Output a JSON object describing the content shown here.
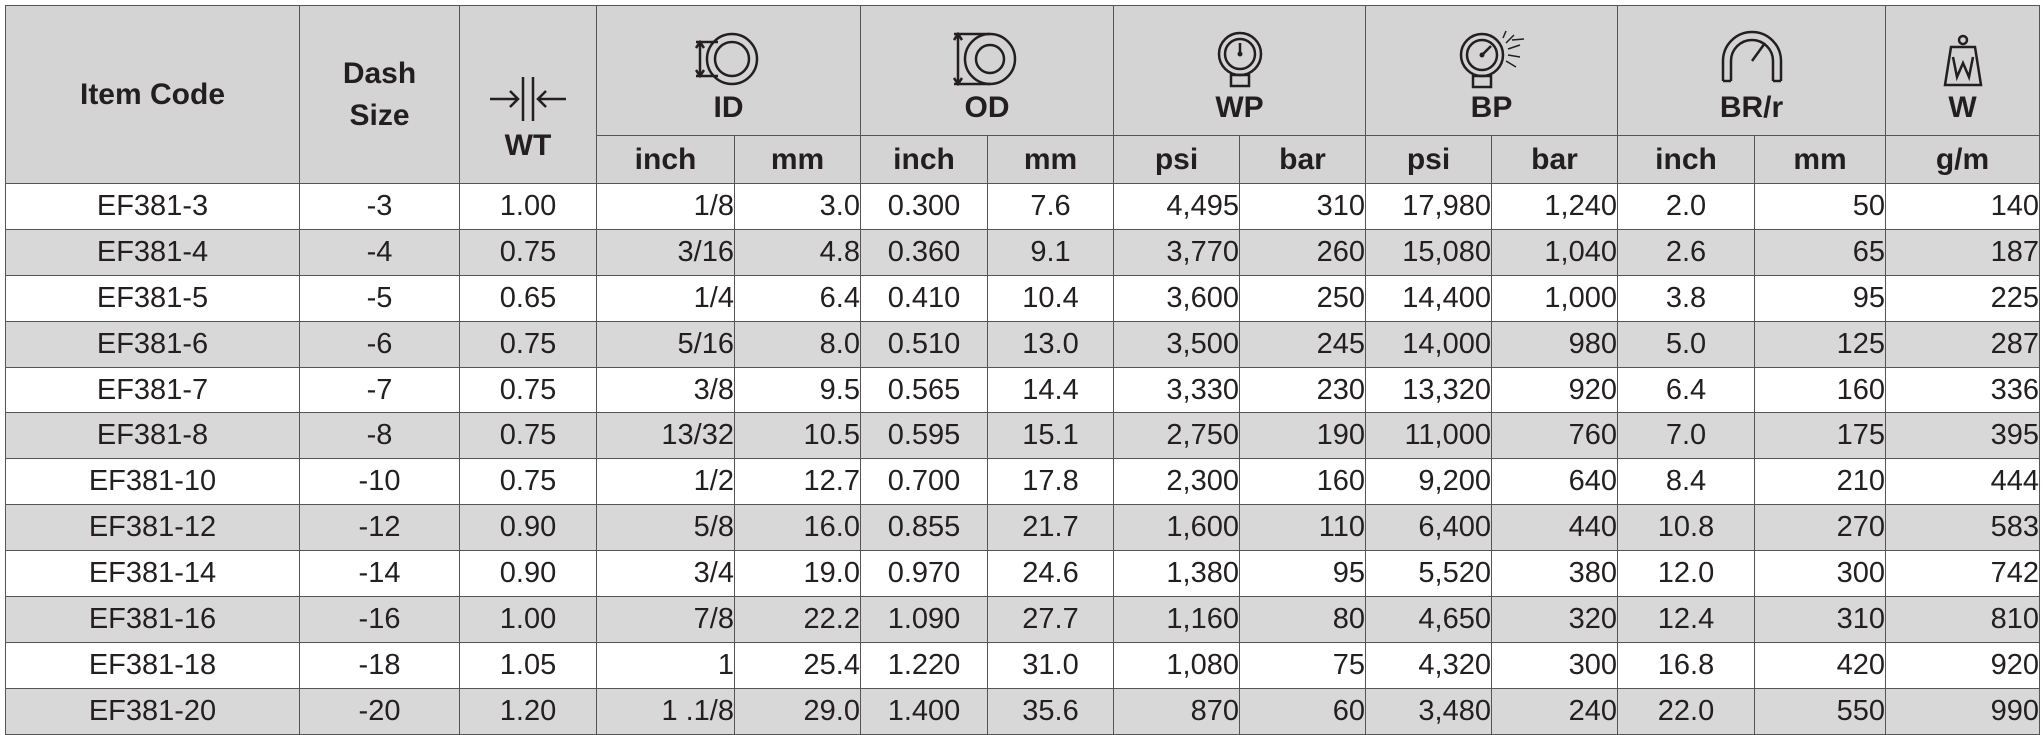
{
  "headers": {
    "item_code": "Item Code",
    "dash_size": "Dash Size",
    "wt": "WT",
    "id": "ID",
    "od": "OD",
    "wp": "WP",
    "bp": "BP",
    "brr": "BR/r",
    "w": "W"
  },
  "icons": {
    "wt": "wall-thickness-icon",
    "id": "inner-diameter-icon",
    "od": "outer-diameter-icon",
    "wp": "pressure-gauge-icon",
    "bp": "burst-gauge-icon",
    "brr": "bend-radius-icon",
    "w": "weight-icon"
  },
  "units": [
    "inch",
    "mm",
    "inch",
    "mm",
    "psi",
    "bar",
    "psi",
    "bar",
    "inch",
    "mm",
    "g/m"
  ],
  "rows": [
    [
      "EF381-3",
      "-3",
      "1.00",
      "1/8",
      "3.0",
      "0.300",
      "7.6",
      "4,495",
      "310",
      "17,980",
      "1,240",
      "2.0",
      "50",
      "140"
    ],
    [
      "EF381-4",
      "-4",
      "0.75",
      "3/16",
      "4.8",
      "0.360",
      "9.1",
      "3,770",
      "260",
      "15,080",
      "1,040",
      "2.6",
      "65",
      "187"
    ],
    [
      "EF381-5",
      "-5",
      "0.65",
      "1/4",
      "6.4",
      "0.410",
      "10.4",
      "3,600",
      "250",
      "14,400",
      "1,000",
      "3.8",
      "95",
      "225"
    ],
    [
      "EF381-6",
      "-6",
      "0.75",
      "5/16",
      "8.0",
      "0.510",
      "13.0",
      "3,500",
      "245",
      "14,000",
      "980",
      "5.0",
      "125",
      "287"
    ],
    [
      "EF381-7",
      "-7",
      "0.75",
      "3/8",
      "9.5",
      "0.565",
      "14.4",
      "3,330",
      "230",
      "13,320",
      "920",
      "6.4",
      "160",
      "336"
    ],
    [
      "EF381-8",
      "-8",
      "0.75",
      "13/32",
      "10.5",
      "0.595",
      "15.1",
      "2,750",
      "190",
      "11,000",
      "760",
      "7.0",
      "175",
      "395"
    ],
    [
      "EF381-10",
      "-10",
      "0.75",
      "1/2",
      "12.7",
      "0.700",
      "17.8",
      "2,300",
      "160",
      "9,200",
      "640",
      "8.4",
      "210",
      "444"
    ],
    [
      "EF381-12",
      "-12",
      "0.90",
      "5/8",
      "16.0",
      "0.855",
      "21.7",
      "1,600",
      "110",
      "6,400",
      "440",
      "10.8",
      "270",
      "583"
    ],
    [
      "EF381-14",
      "-14",
      "0.90",
      "3/4",
      "19.0",
      "0.970",
      "24.6",
      "1,380",
      "95",
      "5,520",
      "380",
      "12.0",
      "300",
      "742"
    ],
    [
      "EF381-16",
      "-16",
      "1.00",
      "7/8",
      "22.2",
      "1.090",
      "27.7",
      "1,160",
      "80",
      "4,650",
      "320",
      "12.4",
      "310",
      "810"
    ],
    [
      "EF381-18",
      "-18",
      "1.05",
      "1",
      "25.4",
      "1.220",
      "31.0",
      "1,080",
      "75",
      "4,320",
      "300",
      "16.8",
      "420",
      "920"
    ],
    [
      "EF381-20",
      "-20",
      "1.20",
      "1 .1/8",
      "29.0",
      "1.400",
      "35.6",
      "870",
      "60",
      "3,480",
      "240",
      "22.0",
      "550",
      "990"
    ]
  ]
}
